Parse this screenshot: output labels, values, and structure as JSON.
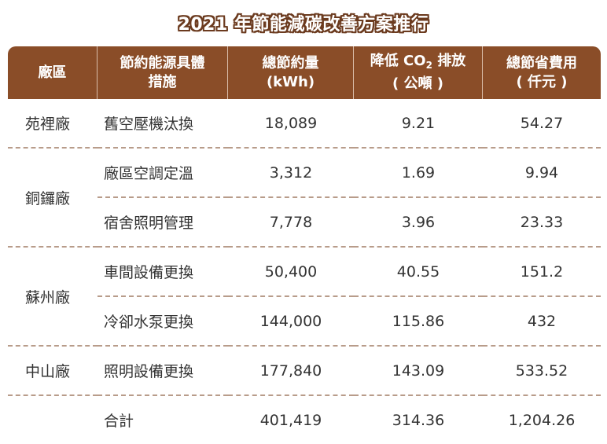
{
  "title": "2021 年節能減碳改善方案推行",
  "headers": {
    "factory": "廠區",
    "measure_line1": "節約能源具體",
    "measure_line2": "措施",
    "energy_line1": "總節約量",
    "energy_line2": "(kWh)",
    "co2_prefix": "降低 CO",
    "co2_sub": "2",
    "co2_suffix": " 排放",
    "co2_line2": "( 公噸 )",
    "cost_line1": "總節省費用",
    "cost_line2": "( 仟元 )"
  },
  "rows": [
    {
      "factory": "苑裡廠",
      "measure": "舊空壓機汰換",
      "energy": "18,089",
      "co2": "9.21",
      "cost": "54.27"
    },
    {
      "factory": "銅鑼廠",
      "measure": "廠區空調定溫",
      "energy": "3,312",
      "co2": "1.69",
      "cost": "9.94"
    },
    {
      "factory": "",
      "measure": "宿舍照明管理",
      "energy": "7,778",
      "co2": "3.96",
      "cost": "23.33"
    },
    {
      "factory": "蘇州廠",
      "measure": "車間設備更換",
      "energy": "50,400",
      "co2": "40.55",
      "cost": "151.2"
    },
    {
      "factory": "",
      "measure": "冷卻水泵更換",
      "energy": "144,000",
      "co2": "115.86",
      "cost": "432"
    },
    {
      "factory": "中山廠",
      "measure": "照明設備更換",
      "energy": "177,840",
      "co2": "143.09",
      "cost": "533.52"
    }
  ],
  "total": {
    "label": "合計",
    "energy": "401,419",
    "co2": "314.36",
    "cost": "1,204.26"
  }
}
